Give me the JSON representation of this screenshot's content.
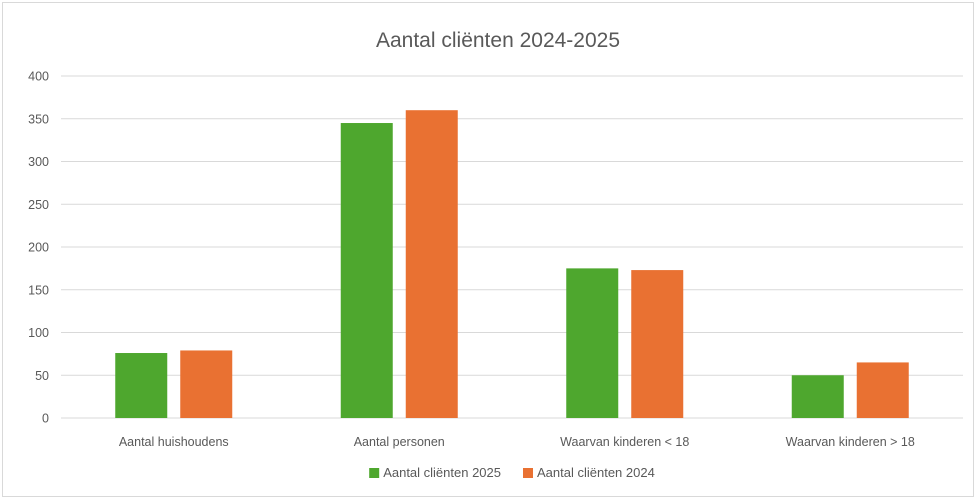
{
  "chart_data": {
    "type": "bar",
    "title": "Aantal cliënten 2024-2025",
    "xlabel": "",
    "ylabel": "",
    "categories": [
      "Aantal huishoudens",
      "Aantal personen",
      "Waarvan kinderen < 18",
      "Waarvan kinderen > 18"
    ],
    "series": [
      {
        "name": "Aantal cliënten 2025",
        "values": [
          76,
          345,
          175,
          50
        ],
        "color": "#4ea72e"
      },
      {
        "name": "Aantal cliënten 2024",
        "values": [
          79,
          360,
          173,
          65
        ],
        "color": "#e97132"
      }
    ],
    "ylim": [
      0,
      400
    ],
    "yticks": [
      0,
      50,
      100,
      150,
      200,
      250,
      300,
      350,
      400
    ],
    "grid": true,
    "legend_position": "bottom"
  }
}
